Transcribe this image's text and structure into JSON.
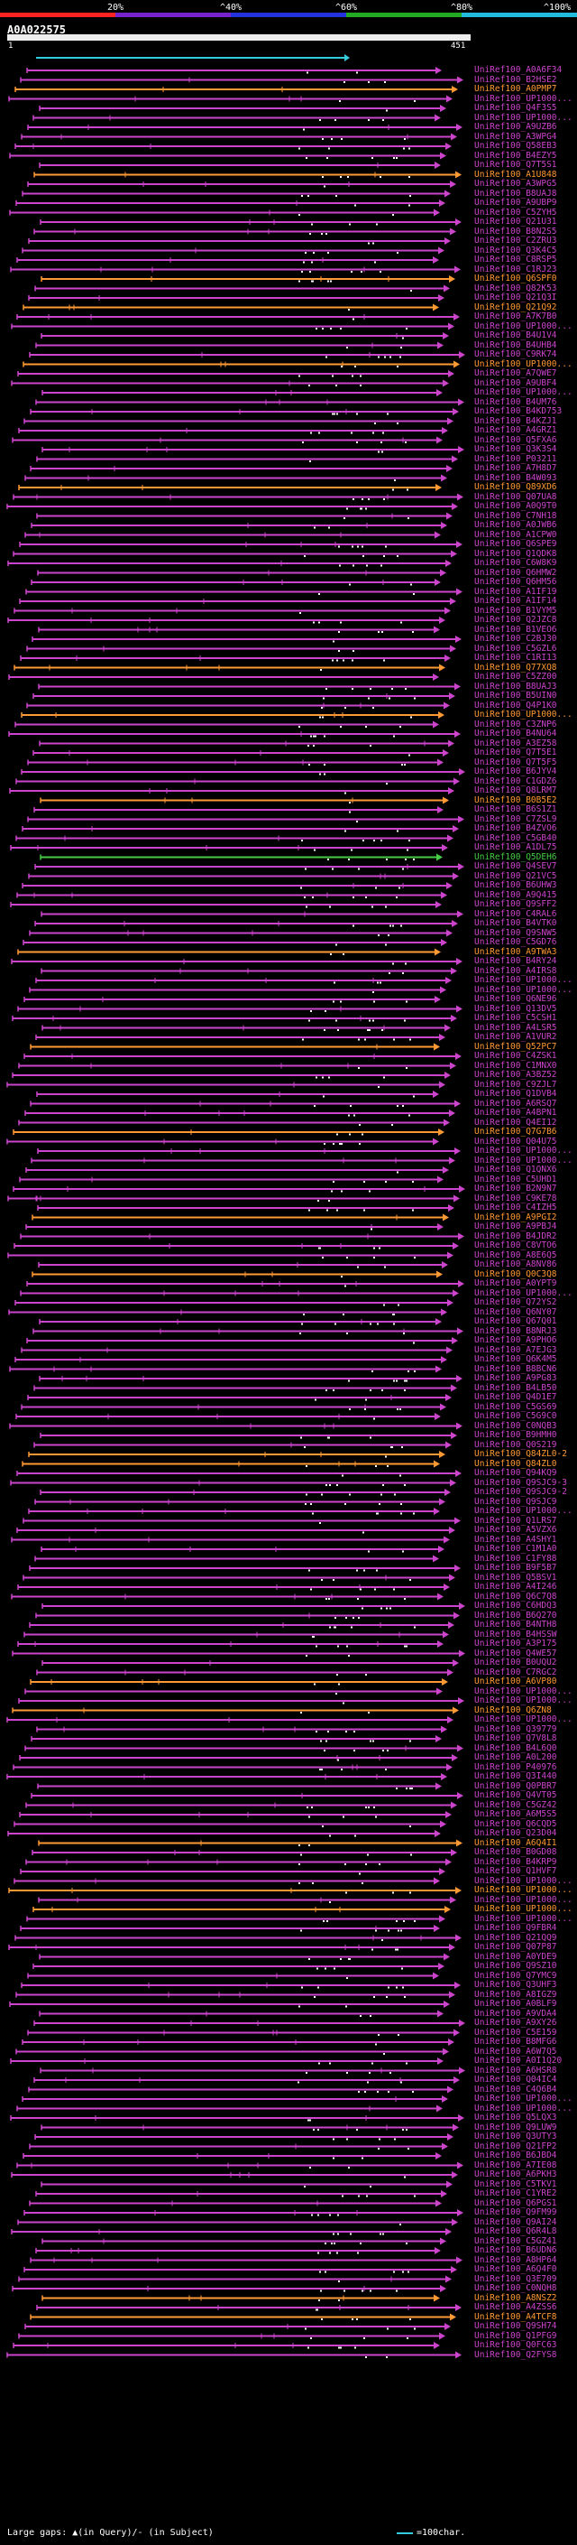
{
  "query_id": "A0A022575",
  "scale": {
    "ticks": [
      "20%",
      "^40%",
      "^60%",
      "^80%",
      "^100%"
    ],
    "colors": [
      "#ff2222",
      "#7722cc",
      "#2233dd",
      "#22aa22",
      "#22bbdd"
    ]
  },
  "ruler": {
    "start": "1",
    "end": "451"
  },
  "palette": {
    "purple": "#cc44cc",
    "orange": "#ff9933",
    "green": "#44cc44",
    "cyan": "#33ccdd"
  },
  "legend": {
    "gaps_text": "Large gaps: ▲(in Query)/- (in Subject)",
    "scale_text": "=100char."
  },
  "hits": [
    {
      "label": "UniRef100_A0A6F34",
      "color": "purple"
    },
    {
      "label": "UniRef100_B2HSE2",
      "color": "purple"
    },
    {
      "label": "UniRef100_A0PMP7",
      "color": "orange"
    },
    {
      "label": "UniRef100_UP1000...",
      "color": "purple"
    },
    {
      "label": "UniRef100_Q4F3S5",
      "color": "purple"
    },
    {
      "label": "UniRef100_UP1000...",
      "color": "purple"
    },
    {
      "label": "UniRef100_A9UZB6",
      "color": "purple"
    },
    {
      "label": "UniRef100_A3WPG4",
      "color": "purple"
    },
    {
      "label": "UniRef100_Q58EB3",
      "color": "purple"
    },
    {
      "label": "UniRef100_B4EZY5",
      "color": "purple"
    },
    {
      "label": "UniRef100_Q7T5S1",
      "color": "purple"
    },
    {
      "label": "UniRef100_A1U848",
      "color": "orange"
    },
    {
      "label": "UniRef100_A3WPG5",
      "color": "purple"
    },
    {
      "label": "UniRef100_B8UAJ8",
      "color": "purple"
    },
    {
      "label": "UniRef100_A9UBP9",
      "color": "purple"
    },
    {
      "label": "UniRef100_C5ZYH5",
      "color": "purple"
    },
    {
      "label": "UniRef100_Q21U31",
      "color": "purple"
    },
    {
      "label": "UniRef100_B8N2S5",
      "color": "purple"
    },
    {
      "label": "UniRef100_C2ZRU3",
      "color": "purple"
    },
    {
      "label": "UniRef100_Q3K4C5",
      "color": "purple"
    },
    {
      "label": "UniRef100_C8RSP5",
      "color": "purple"
    },
    {
      "label": "UniRef100_C1RJ23",
      "color": "purple"
    },
    {
      "label": "UniRef100_Q6SPF0",
      "color": "orange"
    },
    {
      "label": "UniRef100_Q82K53",
      "color": "purple"
    },
    {
      "label": "UniRef100_Q21Q3I",
      "color": "purple"
    },
    {
      "label": "UniRef100_Q21Q92",
      "color": "orange"
    },
    {
      "label": "UniRef100_A7K7B0",
      "color": "purple"
    },
    {
      "label": "UniRef100_UP1000...",
      "color": "purple"
    },
    {
      "label": "UniRef100_B4U1V4",
      "color": "purple"
    },
    {
      "label": "UniRef100_B4UHB4",
      "color": "purple"
    },
    {
      "label": "UniRef100_C9RK74",
      "color": "purple"
    },
    {
      "label": "UniRef100_UP1000...",
      "color": "orange"
    },
    {
      "label": "UniRef100_A7QWE7",
      "color": "purple"
    },
    {
      "label": "UniRef100_A9UBF4",
      "color": "purple"
    },
    {
      "label": "UniRef100_UP1000...",
      "color": "purple"
    },
    {
      "label": "UniRef100_B4UM76",
      "color": "purple"
    },
    {
      "label": "UniRef100_B4KD753",
      "color": "purple"
    },
    {
      "label": "UniRef100_B4KZJ1",
      "color": "purple"
    },
    {
      "label": "UniRef100_A4GRZ1",
      "color": "purple"
    },
    {
      "label": "UniRef100_Q5FXA6",
      "color": "purple"
    },
    {
      "label": "UniRef100_Q3K3S4",
      "color": "purple"
    },
    {
      "label": "UniRef100_P03211",
      "color": "purple"
    },
    {
      "label": "UniRef100_A7H8D7",
      "color": "purple"
    },
    {
      "label": "UniRef100_B4W093",
      "color": "purple"
    },
    {
      "label": "UniRef100_Q89XD6",
      "color": "orange"
    },
    {
      "label": "UniRef100_Q07UA8",
      "color": "purple"
    },
    {
      "label": "UniRef100_A0Q9T0",
      "color": "purple"
    },
    {
      "label": "UniRef100_C7NH18",
      "color": "purple"
    },
    {
      "label": "UniRef100_A0JWB6",
      "color": "purple"
    },
    {
      "label": "UniRef100_A1CPW0",
      "color": "purple"
    },
    {
      "label": "UniRef100_Q6SPE9",
      "color": "purple"
    },
    {
      "label": "UniRef100_Q1QDK8",
      "color": "purple"
    },
    {
      "label": "UniRef100_C6W8K9",
      "color": "purple"
    },
    {
      "label": "UniRef100_Q6HMW2",
      "color": "purple"
    },
    {
      "label": "UniRef100_Q6HM56",
      "color": "purple"
    },
    {
      "label": "UniRef100_A1IF19",
      "color": "purple"
    },
    {
      "label": "UniRef100_A1IF14",
      "color": "purple"
    },
    {
      "label": "UniRef100_B1VYM5",
      "color": "purple"
    },
    {
      "label": "UniRef100_Q2JZC8",
      "color": "purple"
    },
    {
      "label": "UniRef100_B1VEO6",
      "color": "purple"
    },
    {
      "label": "UniRef100_C2BJ30",
      "color": "purple"
    },
    {
      "label": "UniRef100_C5GZL6",
      "color": "purple"
    },
    {
      "label": "UniRef100_C1RI13",
      "color": "purple"
    },
    {
      "label": "UniRef100_Q77XQ8",
      "color": "orange"
    },
    {
      "label": "UniRef100_C5ZZ00",
      "color": "purple"
    },
    {
      "label": "UniRef100_B8UAJ3",
      "color": "purple"
    },
    {
      "label": "UniRef100_B5UIN0",
      "color": "purple"
    },
    {
      "label": "UniRef100_Q4P1K0",
      "color": "purple"
    },
    {
      "label": "UniRef100_UP1000...",
      "color": "orange"
    },
    {
      "label": "UniRef100_C3ZNP6",
      "color": "purple"
    },
    {
      "label": "UniRef100_B4NU64",
      "color": "purple"
    },
    {
      "label": "UniRef100_A3EZ58",
      "color": "purple"
    },
    {
      "label": "UniRef100_Q7T5E1",
      "color": "purple"
    },
    {
      "label": "UniRef100_Q7T5F5",
      "color": "purple"
    },
    {
      "label": "UniRef100_B6JYV4",
      "color": "purple"
    },
    {
      "label": "UniRef100_C1GDZ6",
      "color": "purple"
    },
    {
      "label": "UniRef100_Q8LRM7",
      "color": "purple"
    },
    {
      "label": "UniRef100_B0B5E2",
      "color": "orange"
    },
    {
      "label": "UniRef100_B6S1Z1",
      "color": "purple"
    },
    {
      "label": "UniRef100_C7ZSL9",
      "color": "purple"
    },
    {
      "label": "UniRef100_B4ZVO6",
      "color": "purple"
    },
    {
      "label": "UniRef100_C5GB40",
      "color": "purple"
    },
    {
      "label": "UniRef100_A1DL75",
      "color": "purple"
    },
    {
      "label": "UniRef100_Q5DEH6",
      "color": "green"
    },
    {
      "label": "UniRef100_Q4SEV7",
      "color": "purple"
    },
    {
      "label": "UniRef100_Q21VC5",
      "color": "purple"
    },
    {
      "label": "UniRef100_B6UHW3",
      "color": "purple"
    },
    {
      "label": "UniRef100_A9Q415",
      "color": "purple"
    },
    {
      "label": "UniRef100_Q9SFF2",
      "color": "purple"
    },
    {
      "label": "UniRef100_C4RAL6",
      "color": "purple"
    },
    {
      "label": "UniRef100_B4VTK0",
      "color": "purple"
    },
    {
      "label": "UniRef100_Q9SNW5",
      "color": "purple"
    },
    {
      "label": "UniRef100_C5GD76",
      "color": "purple"
    },
    {
      "label": "UniRef100_A9TWA3",
      "color": "orange"
    },
    {
      "label": "UniRef100_B4RY24",
      "color": "purple"
    },
    {
      "label": "UniRef100_A4IRS8",
      "color": "purple"
    },
    {
      "label": "UniRef100_UP1000...",
      "color": "purple"
    },
    {
      "label": "UniRef100_UP1000...",
      "color": "purple"
    },
    {
      "label": "UniRef100_Q6NE96",
      "color": "purple"
    },
    {
      "label": "UniRef100_Q13DV5",
      "color": "purple"
    },
    {
      "label": "UniRef100_C5CSH1",
      "color": "purple"
    },
    {
      "label": "UniRef100_A4LSR5",
      "color": "purple"
    },
    {
      "label": "UniRef100_A1VUR2",
      "color": "purple"
    },
    {
      "label": "UniRef100_Q52PC7",
      "color": "orange"
    },
    {
      "label": "UniRef100_C4ZSK1",
      "color": "purple"
    },
    {
      "label": "UniRef100_C1MNX0",
      "color": "purple"
    },
    {
      "label": "UniRef100_A3BZ52",
      "color": "purple"
    },
    {
      "label": "UniRef100_C9ZJL7",
      "color": "purple"
    },
    {
      "label": "UniRef100_Q1DVB4",
      "color": "purple"
    },
    {
      "label": "UniRef100_A6RSQ7",
      "color": "purple"
    },
    {
      "label": "UniRef100_A4BPN1",
      "color": "purple"
    },
    {
      "label": "UniRef100_Q4EI12",
      "color": "purple"
    },
    {
      "label": "UniRef100_Q7G7B6",
      "color": "orange"
    },
    {
      "label": "UniRef100_Q04U75",
      "color": "purple"
    },
    {
      "label": "UniRef100_UP1000...",
      "color": "purple"
    },
    {
      "label": "UniRef100_UP1000...",
      "color": "purple"
    },
    {
      "label": "UniRef100_Q1QNX6",
      "color": "purple"
    },
    {
      "label": "UniRef100_C5UHD1",
      "color": "purple"
    },
    {
      "label": "UniRef100_B2N9N7",
      "color": "purple"
    },
    {
      "label": "UniRef100_C9KE78",
      "color": "purple"
    },
    {
      "label": "UniRef100_C4IZH5",
      "color": "purple"
    },
    {
      "label": "UniRef100_A9PGI2",
      "color": "orange"
    },
    {
      "label": "UniRef100_A9PBJ4",
      "color": "purple"
    },
    {
      "label": "UniRef100_B4JDR2",
      "color": "purple"
    },
    {
      "label": "UniRef100_C8VTO6",
      "color": "purple"
    },
    {
      "label": "UniRef100_A8E6Q5",
      "color": "purple"
    },
    {
      "label": "UniRef100_A8NV86",
      "color": "purple"
    },
    {
      "label": "UniRef100_Q0C3Q8",
      "color": "orange"
    },
    {
      "label": "UniRef100_A0YPT9",
      "color": "purple"
    },
    {
      "label": "UniRef100_UP1000...",
      "color": "purple"
    },
    {
      "label": "UniRef100_Q72YS2",
      "color": "purple"
    },
    {
      "label": "UniRef100_Q6NY07",
      "color": "purple"
    },
    {
      "label": "UniRef100_Q67Q01",
      "color": "purple"
    },
    {
      "label": "UniRef100_B8NRJ3",
      "color": "purple"
    },
    {
      "label": "UniRef100_A9PHO6",
      "color": "purple"
    },
    {
      "label": "UniRef100_A7EJG3",
      "color": "purple"
    },
    {
      "label": "UniRef100_Q6K4M5",
      "color": "purple"
    },
    {
      "label": "UniRef100_B8BCN6",
      "color": "purple"
    },
    {
      "label": "UniRef100_A9PG83",
      "color": "purple"
    },
    {
      "label": "UniRef100_B4LB50",
      "color": "purple"
    },
    {
      "label": "UniRef100_Q4D1E7",
      "color": "purple"
    },
    {
      "label": "UniRef100_C5GS69",
      "color": "purple"
    },
    {
      "label": "UniRef100_C5G9C0",
      "color": "purple"
    },
    {
      "label": "UniRef100_C0NQB3",
      "color": "purple"
    },
    {
      "label": "UniRef100_B9HMH0",
      "color": "purple"
    },
    {
      "label": "UniRef100_Q0S219",
      "color": "purple"
    },
    {
      "label": "UniRef100_Q84ZL0-2",
      "color": "orange"
    },
    {
      "label": "UniRef100_Q84ZL0",
      "color": "orange"
    },
    {
      "label": "UniRef100_Q94KQ9",
      "color": "purple"
    },
    {
      "label": "UniRef100_Q9SJC9-3",
      "color": "purple"
    },
    {
      "label": "UniRef100_Q9SJC9-2",
      "color": "purple"
    },
    {
      "label": "UniRef100_Q9SJC9",
      "color": "purple"
    },
    {
      "label": "UniRef100_UP1000...",
      "color": "purple"
    },
    {
      "label": "UniRef100_Q1LRS7",
      "color": "purple"
    },
    {
      "label": "UniRef100_A5VZX6",
      "color": "purple"
    },
    {
      "label": "UniRef100_A4SHY1",
      "color": "purple"
    },
    {
      "label": "UniRef100_C1M1A0",
      "color": "purple"
    },
    {
      "label": "UniRef100_C1FY88",
      "color": "purple"
    },
    {
      "label": "UniRef100_B9F5B7",
      "color": "purple"
    },
    {
      "label": "UniRef100_Q5BSV1",
      "color": "purple"
    },
    {
      "label": "UniRef100_A4I246",
      "color": "purple"
    },
    {
      "label": "UniRef100_Q6C7Q8",
      "color": "purple"
    },
    {
      "label": "UniRef100_C6HDQ3",
      "color": "purple"
    },
    {
      "label": "UniRef100_B6Q270",
      "color": "purple"
    },
    {
      "label": "UniRef100_B4NTH8",
      "color": "purple"
    },
    {
      "label": "UniRef100_B4HSSW",
      "color": "purple"
    },
    {
      "label": "UniRef100_A3P175",
      "color": "purple"
    },
    {
      "label": "UniRef100_Q4WE57",
      "color": "purple"
    },
    {
      "label": "UniRef100_B0UQU2",
      "color": "purple"
    },
    {
      "label": "UniRef100_C7RGC2",
      "color": "purple"
    },
    {
      "label": "UniRef100_A6VP80",
      "color": "orange"
    },
    {
      "label": "UniRef100_UP1000...",
      "color": "purple"
    },
    {
      "label": "UniRef100_UP1000...",
      "color": "purple"
    },
    {
      "label": "UniRef100_Q6ZN8",
      "color": "orange"
    },
    {
      "label": "UniRef100_UP1000...",
      "color": "purple"
    },
    {
      "label": "UniRef100_Q39779",
      "color": "purple"
    },
    {
      "label": "UniRef100_Q7V8L8",
      "color": "purple"
    },
    {
      "label": "UniRef100_B4L6Q0",
      "color": "purple"
    },
    {
      "label": "UniRef100_A0L200",
      "color": "purple"
    },
    {
      "label": "UniRef100_P40976",
      "color": "purple"
    },
    {
      "label": "UniRef100_Q3I440",
      "color": "purple"
    },
    {
      "label": "UniRef100_Q0PBR7",
      "color": "purple"
    },
    {
      "label": "UniRef100_Q4VT05",
      "color": "purple"
    },
    {
      "label": "UniRef100_C5GZ42",
      "color": "purple"
    },
    {
      "label": "UniRef100_A6M5S5",
      "color": "purple"
    },
    {
      "label": "UniRef100_Q6CQD5",
      "color": "purple"
    },
    {
      "label": "UniRef100_Q23D04",
      "color": "purple"
    },
    {
      "label": "UniRef100_A6Q4I1",
      "color": "orange"
    },
    {
      "label": "UniRef100_B0GD08",
      "color": "purple"
    },
    {
      "label": "UniRef100_B4KRP9",
      "color": "purple"
    },
    {
      "label": "UniRef100_Q1HVF7",
      "color": "purple"
    },
    {
      "label": "UniRef100_UP1000...",
      "color": "purple"
    },
    {
      "label": "UniRef100_UP1000...",
      "color": "orange"
    },
    {
      "label": "UniRef100_UP1000...",
      "color": "purple"
    },
    {
      "label": "UniRef100_UP1000...",
      "color": "orange"
    },
    {
      "label": "UniRef100_UP1000...",
      "color": "purple"
    },
    {
      "label": "UniRef100_Q9FBR4",
      "color": "purple"
    },
    {
      "label": "UniRef100_Q21QQ9",
      "color": "purple"
    },
    {
      "label": "UniRef100_Q07P87",
      "color": "purple"
    },
    {
      "label": "UniRef100_A0YDE9",
      "color": "purple"
    },
    {
      "label": "UniRef100_Q9SZ10",
      "color": "purple"
    },
    {
      "label": "UniRef100_Q7YMC9",
      "color": "purple"
    },
    {
      "label": "UniRef100_Q3UHF3",
      "color": "purple"
    },
    {
      "label": "UniRef100_A8IGZ9",
      "color": "purple"
    },
    {
      "label": "UniRef100_A0BLF9",
      "color": "purple"
    },
    {
      "label": "UniRef100_A9VDA4",
      "color": "purple"
    },
    {
      "label": "UniRef100_A9XY26",
      "color": "purple"
    },
    {
      "label": "UniRef100_C5E159",
      "color": "purple"
    },
    {
      "label": "UniRef100_B8MFG6",
      "color": "purple"
    },
    {
      "label": "UniRef100_A6W7Q5",
      "color": "purple"
    },
    {
      "label": "UniRef100_A0I1Q20",
      "color": "purple"
    },
    {
      "label": "UniRef100_A6HSR8",
      "color": "purple"
    },
    {
      "label": "UniRef100_Q04IC4",
      "color": "purple"
    },
    {
      "label": "UniRef100_C4Q6B4",
      "color": "purple"
    },
    {
      "label": "UniRef100_UP1000...",
      "color": "purple"
    },
    {
      "label": "UniRef100_UP1000...",
      "color": "purple"
    },
    {
      "label": "UniRef100_Q5LQX3",
      "color": "purple"
    },
    {
      "label": "UniRef100_Q9LUW9",
      "color": "purple"
    },
    {
      "label": "UniRef100_Q3UTY3",
      "color": "purple"
    },
    {
      "label": "UniRef100_Q21FP2",
      "color": "purple"
    },
    {
      "label": "UniRef100_B6JBD4",
      "color": "purple"
    },
    {
      "label": "UniRef100_A7IE08",
      "color": "purple"
    },
    {
      "label": "UniRef100_A6PKH3",
      "color": "purple"
    },
    {
      "label": "UniRef100_C5TKV1",
      "color": "purple"
    },
    {
      "label": "UniRef100_C1YRE2",
      "color": "purple"
    },
    {
      "label": "UniRef100_Q6PGS1",
      "color": "purple"
    },
    {
      "label": "UniRef100_Q9FM99",
      "color": "purple"
    },
    {
      "label": "UniRef100_Q9AI24",
      "color": "purple"
    },
    {
      "label": "UniRef100_Q6R4L8",
      "color": "purple"
    },
    {
      "label": "UniRef100_C5GZ41",
      "color": "purple"
    },
    {
      "label": "UniRef100_B6UDN6",
      "color": "purple"
    },
    {
      "label": "UniRef100_A8HP64",
      "color": "purple"
    },
    {
      "label": "UniRef100_A6Q4F0",
      "color": "purple"
    },
    {
      "label": "UniRef100_Q3E709",
      "color": "purple"
    },
    {
      "label": "UniRef100_C0NQH8",
      "color": "purple"
    },
    {
      "label": "UniRef100_A8NSZ2",
      "color": "orange"
    },
    {
      "label": "UniRef100_A4ZSS6",
      "color": "purple"
    },
    {
      "label": "UniRef100_A4TCF8",
      "color": "orange"
    },
    {
      "label": "UniRef100_Q9SH74",
      "color": "purple"
    },
    {
      "label": "UniRef100_Q1PFG9",
      "color": "purple"
    },
    {
      "label": "UniRef100_Q0FC63",
      "color": "purple"
    },
    {
      "label": "UniRef100_Q2FYS8",
      "color": "purple"
    }
  ]
}
